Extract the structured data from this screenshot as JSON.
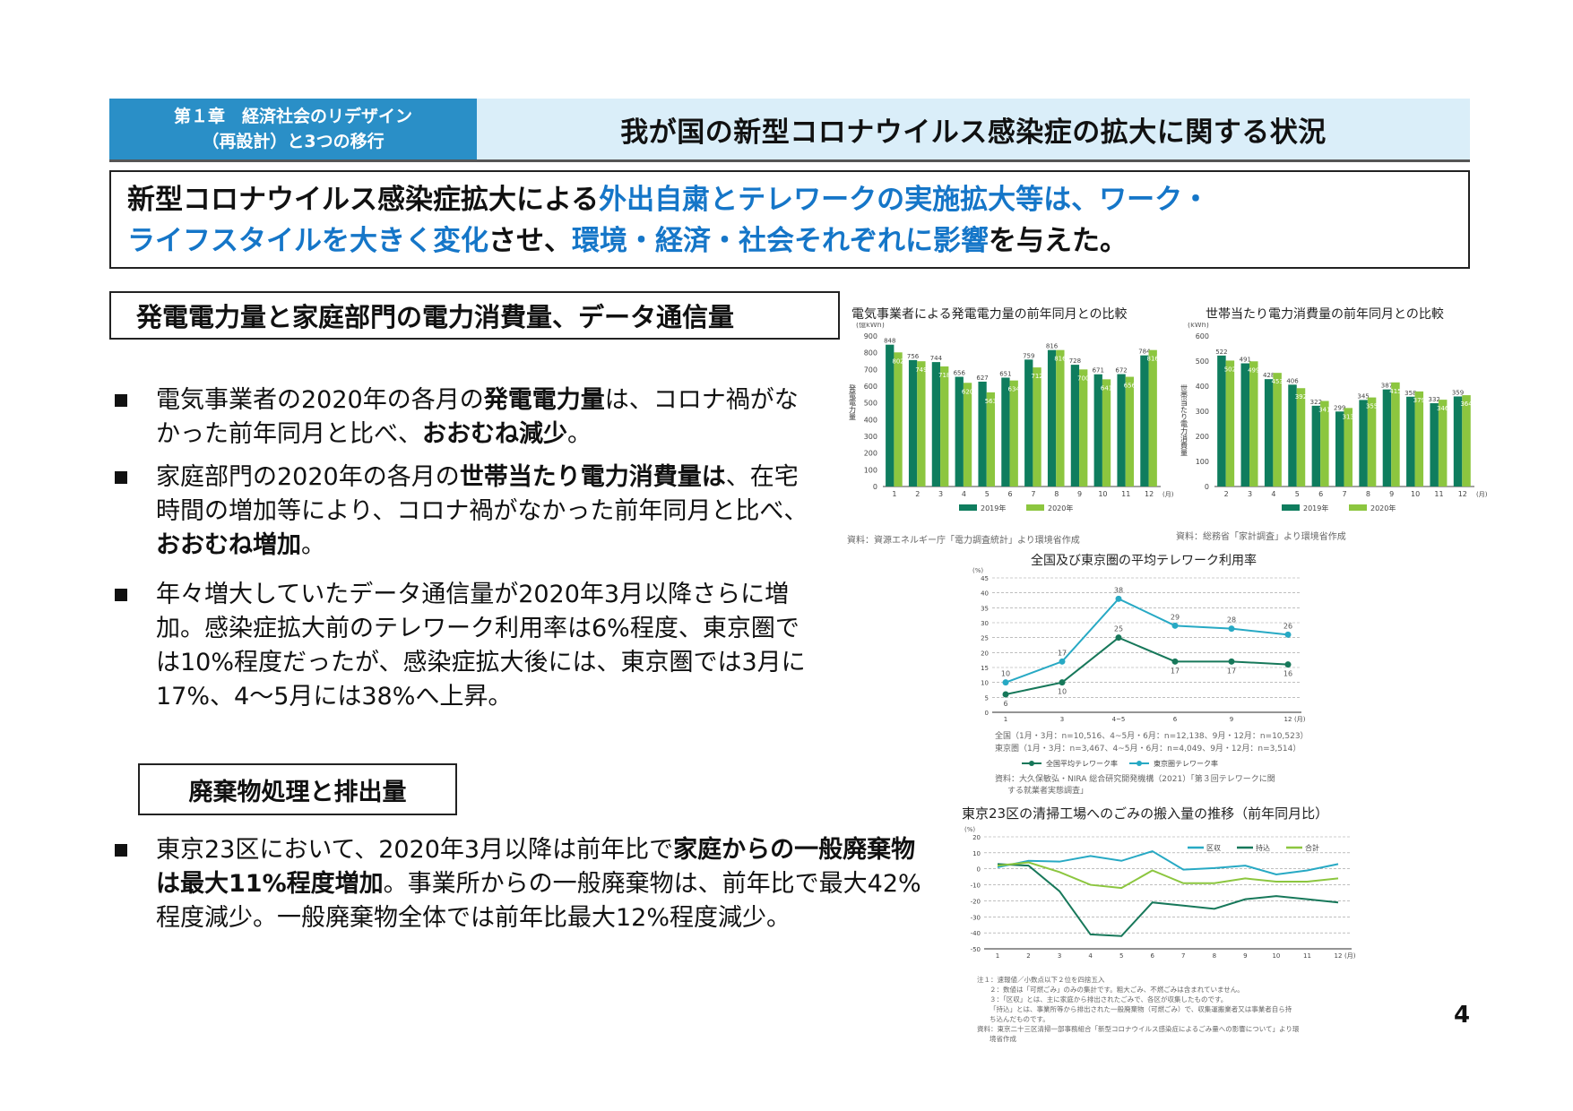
{
  "header": {
    "chapter_line1": "第１章　経済社会のリデザイン",
    "chapter_line2": "（再設計）と3つの移行",
    "title": "我が国の新型コロナウイルス感染症の拡大に関する状況"
  },
  "summary": {
    "segments": [
      {
        "text": "新型コロナウイルス感染症拡大による",
        "style": "black"
      },
      {
        "text": "外出自粛とテレワークの実施拡大等は、ワーク・ライフスタイルを大きく変化",
        "style": "blue"
      },
      {
        "text": "させ、",
        "style": "black"
      },
      {
        "text": "環境・経済・社会それぞれに影響",
        "style": "blue"
      },
      {
        "text": "を与えた。",
        "style": "black"
      }
    ],
    "s1": "新型コロナウイルス感染症拡大による",
    "s2": "外出自粛とテレワークの実施拡大等は、ワーク・",
    "s3": "ライフスタイルを大きく変化",
    "s4": "させ、",
    "s5": "環境・経済・社会それぞれに影響",
    "s6": "を与えた。"
  },
  "section1": {
    "heading": "発電電力量と家庭部門の電力消費量、データ通信量",
    "bullets": [
      {
        "a": "電気事業者の2020年の各月の",
        "b": "発電電力量",
        "c": "は、コロナ禍がなかった前年同月と比べ、",
        "d": "おおむね減少",
        "e": "。"
      },
      {
        "a": "家庭部門の2020年の各月の",
        "b": "世帯当たり電力消費量は",
        "c": "、在宅時間の増加等により、コロナ禍がなかった前年同月と比べ、",
        "d": "おおむね増加",
        "e": "。"
      },
      {
        "a": "年々増大していたデータ通信量が2020年3月以降さらに増加。感染症拡大前のテレワーク利用率は6%程度、東京圏では10%程度だったが、感染症拡大後には、東京圏では3月に17%、4～5月には38%へ上昇。"
      }
    ]
  },
  "section2": {
    "heading": "廃棄物処理と排出量",
    "bullets": [
      {
        "a": "東京23区において、2020年3月以降は前年比で",
        "b": "家庭からの一般廃棄物は最大11%程度増加",
        "c": "。事業所からの一般廃棄物は、前年比で最大42%程度減少。一般廃棄物全体では前年比最大12%程度減少。"
      }
    ]
  },
  "page_number": "4",
  "colors": {
    "chapter_bg": "#2a8fc7",
    "title_bg": "#daeef9",
    "accent_blue": "#1576c8",
    "y2019": "#0f7d5e",
    "y2020": "#8cc63f",
    "tokyo": "#27a9c4",
    "national": "#17785a"
  },
  "chart_data": [
    {
      "type": "bar",
      "title": "電気事業者による発電電力量の前年同月との比較",
      "ylabel": "発電電力量",
      "yunit": "(億kWh)",
      "xunit": "(月)",
      "ylim": [
        0,
        900
      ],
      "yticks": [
        0,
        100,
        200,
        300,
        400,
        500,
        600,
        700,
        800,
        900
      ],
      "categories": [
        "1",
        "2",
        "3",
        "4",
        "5",
        "6",
        "7",
        "8",
        "9",
        "10",
        "11",
        "12"
      ],
      "series": [
        {
          "name": "2019年",
          "values": [
            848,
            756,
            744,
            656,
            627,
            651,
            759,
            816,
            728,
            671,
            672,
            784
          ]
        },
        {
          "name": "2020年",
          "values": [
            802,
            749,
            718,
            620,
            563,
            634,
            712,
            816,
            700,
            641,
            656,
            816
          ]
        }
      ],
      "source": "資料：資源エネルギー庁「電力調査統計」より環境省作成"
    },
    {
      "type": "bar",
      "title": "世帯当たり電力消費量の前年同月との比較",
      "ylabel": "世帯当たり電力消費量",
      "yunit": "(kWh)",
      "xunit": "(月)",
      "ylim": [
        0,
        600
      ],
      "yticks": [
        0,
        100,
        200,
        300,
        400,
        500,
        600
      ],
      "categories": [
        "2",
        "3",
        "4",
        "5",
        "6",
        "7",
        "8",
        "9",
        "10",
        "11",
        "12"
      ],
      "series": [
        {
          "name": "2019年",
          "values": [
            522,
            491,
            428,
            406,
            322,
            299,
            345,
            387,
            358,
            332,
            359
          ]
        },
        {
          "name": "2020年",
          "values": [
            502,
            499,
            453,
            392,
            341,
            313,
            355,
            415,
            379,
            346,
            364
          ]
        }
      ],
      "source": "資料：総務省「家計調査」より環境省作成"
    },
    {
      "type": "line",
      "title": "全国及び東京圏の平均テレワーク利用率",
      "yunit": "(%)",
      "xunit": "(月)",
      "ylim": [
        0,
        45
      ],
      "yticks": [
        0,
        5,
        10,
        15,
        20,
        25,
        30,
        35,
        40,
        45
      ],
      "grid": true,
      "categories": [
        "1",
        "3",
        "4~5",
        "6",
        "9",
        "12"
      ],
      "series": [
        {
          "name": "全国平均テレワーク率",
          "values": [
            6,
            10,
            25,
            17,
            17,
            16
          ]
        },
        {
          "name": "東京圏テレワーク率",
          "values": [
            10,
            17,
            38,
            29,
            28,
            26
          ]
        }
      ],
      "sample_notes": [
        "全国（1月・3月：n=10,516、4~5月・6月：n=12,138、9月・12月：n=10,523）",
        "東京圏（1月・3月：n=3,467、4~5月・6月：n=4,049、9月・12月：n=3,514）"
      ],
      "source_line1": "資料：大久保敏弘・NIRA 総合研究開発機構（2021）「第３回テレワークに関",
      "source_line2": "する就業者実態調査」"
    },
    {
      "type": "line",
      "title": "東京23区の清掃工場へのごみの搬入量の推移（前年同月比）",
      "yunit": "(%)",
      "xunit": "(月)",
      "ylim": [
        -50,
        20
      ],
      "yticks": [
        20,
        10,
        0,
        -10,
        -20,
        -30,
        -40,
        -50
      ],
      "grid": true,
      "legend_position": "top-right",
      "categories": [
        "1",
        "2",
        "3",
        "4",
        "5",
        "6",
        "7",
        "8",
        "9",
        "10",
        "11",
        "12"
      ],
      "series": [
        {
          "name": "区収",
          "values": [
            1,
            5,
            4.5,
            8,
            5,
            11,
            -0.5,
            0.5,
            2,
            -3.5,
            -1,
            3
          ]
        },
        {
          "name": "持込",
          "values": [
            3,
            2,
            -14,
            -41,
            -42,
            -21,
            -23,
            -25,
            -19,
            -17,
            -19,
            -21
          ]
        },
        {
          "name": "合計",
          "values": [
            2,
            4,
            -2,
            -10,
            -12,
            -1,
            -9,
            -9,
            -6,
            -8,
            -8,
            -6
          ]
        }
      ],
      "notes": [
        "注１：速報値／小数点以下２位を四捨五入",
        "２：数値は「可燃ごみ」のみの集計です。粗大ごみ、不燃ごみは含まれていません。",
        "３：「区収」とは、主に家庭から排出されたごみで、各区が収集したものです。",
        "「持込」とは、事業所等から排出された一般廃棄物（可燃ごみ）で、収集運搬業者又は事業者自ら持",
        "ち込んだものです。",
        "資料：東京二十三区清掃一部事務組合「新型コロナウイルス感染症によるごみ量への影響について」より環",
        "境省作成"
      ]
    }
  ]
}
